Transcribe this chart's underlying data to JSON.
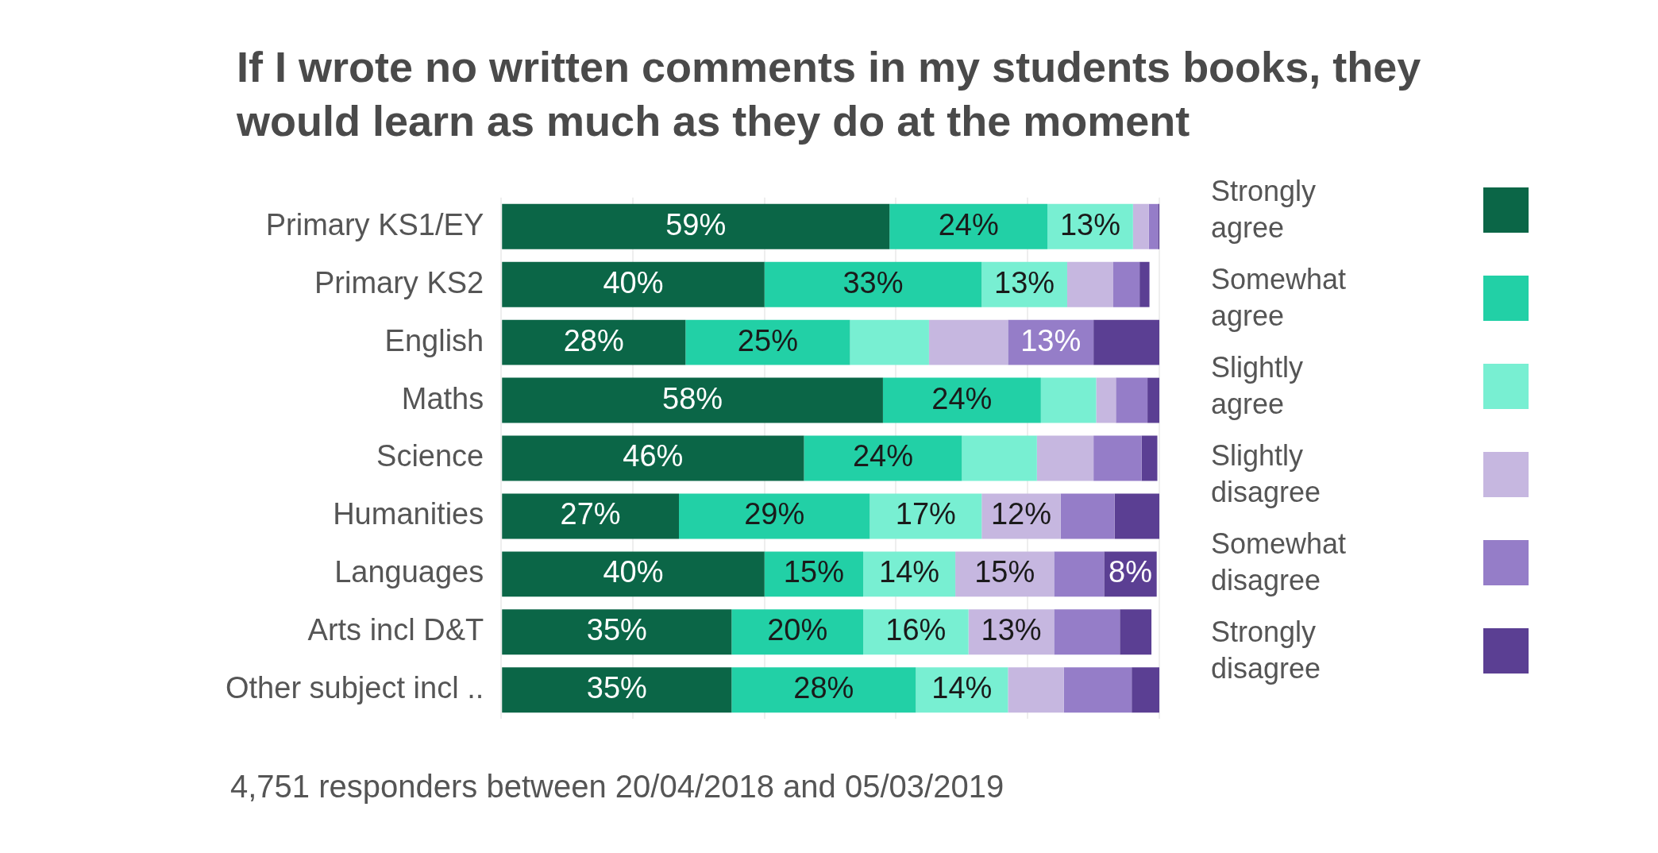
{
  "chart_data": {
    "type": "bar",
    "orientation": "horizontal",
    "stacked": true,
    "title": "If I wrote no written comments in my students books, they would learn as much as they do at the moment",
    "annotations": [
      "4,751 responders between 20/04/2018 and 05/03/2019"
    ],
    "categories": [
      "Primary KS1/EY",
      "Primary KS2",
      "English",
      "Maths",
      "Science",
      "Humanities",
      "Languages",
      "Arts incl D&T",
      "Other subject incl .."
    ],
    "xlim": [
      0,
      100
    ],
    "xticks": [
      {
        "value": 0,
        "label": null
      },
      {
        "value": 20,
        "label": null
      },
      {
        "value": 40,
        "label": null
      },
      {
        "value": 60,
        "label": null
      },
      {
        "value": 80,
        "label": null
      },
      {
        "value": 100,
        "label": null
      }
    ],
    "grid": "x",
    "tick_labels": "y",
    "legend": "right",
    "series": [
      {
        "name": "Strongly agree",
        "color": "#0b6647",
        "values": [
          59,
          40,
          28,
          58,
          46,
          27,
          40,
          35,
          35
        ],
        "value_labels": [
          "59%",
          "40%",
          "28%",
          "58%",
          "46%",
          "27%",
          "40%",
          "35%",
          "35%"
        ]
      },
      {
        "name": "Somewhat agree",
        "color": "#22d0a6",
        "values": [
          24,
          33,
          25,
          24,
          24,
          29,
          15,
          20,
          28
        ],
        "value_labels": [
          "24%",
          "33%",
          "25%",
          "24%",
          "24%",
          "29%",
          "15%",
          "20%",
          "28%"
        ]
      },
      {
        "name": "Slightly agree",
        "color": "#78efd2",
        "values": [
          13,
          13,
          12,
          8.4,
          11.4,
          17,
          14,
          16,
          14
        ],
        "value_labels": [
          "13%",
          "13%",
          null,
          null,
          null,
          "17%",
          "14%",
          "16%",
          "14%"
        ]
      },
      {
        "name": "Slightly disagree",
        "color": "#c6b7e0",
        "values": [
          2.4,
          7,
          12,
          3,
          8.6,
          12,
          15,
          13,
          8.5
        ],
        "value_labels": [
          null,
          null,
          null,
          null,
          null,
          "12%",
          "15%",
          "13%",
          null
        ]
      },
      {
        "name": "Somewhat disagree",
        "color": "#957dc8",
        "values": [
          1.4,
          4,
          13,
          4.8,
          7.3,
          8.2,
          7.6,
          10,
          10.3
        ],
        "value_labels": [
          null,
          null,
          "13%",
          null,
          null,
          null,
          null,
          null,
          null
        ]
      },
      {
        "name": "Strongly disagree",
        "color": "#5b3f93",
        "values": [
          0.2,
          1.5,
          10,
          1.8,
          2.4,
          6.8,
          8,
          4.8,
          4.2
        ],
        "value_labels": [
          null,
          null,
          null,
          null,
          null,
          null,
          "8%",
          null,
          null
        ]
      }
    ]
  }
}
